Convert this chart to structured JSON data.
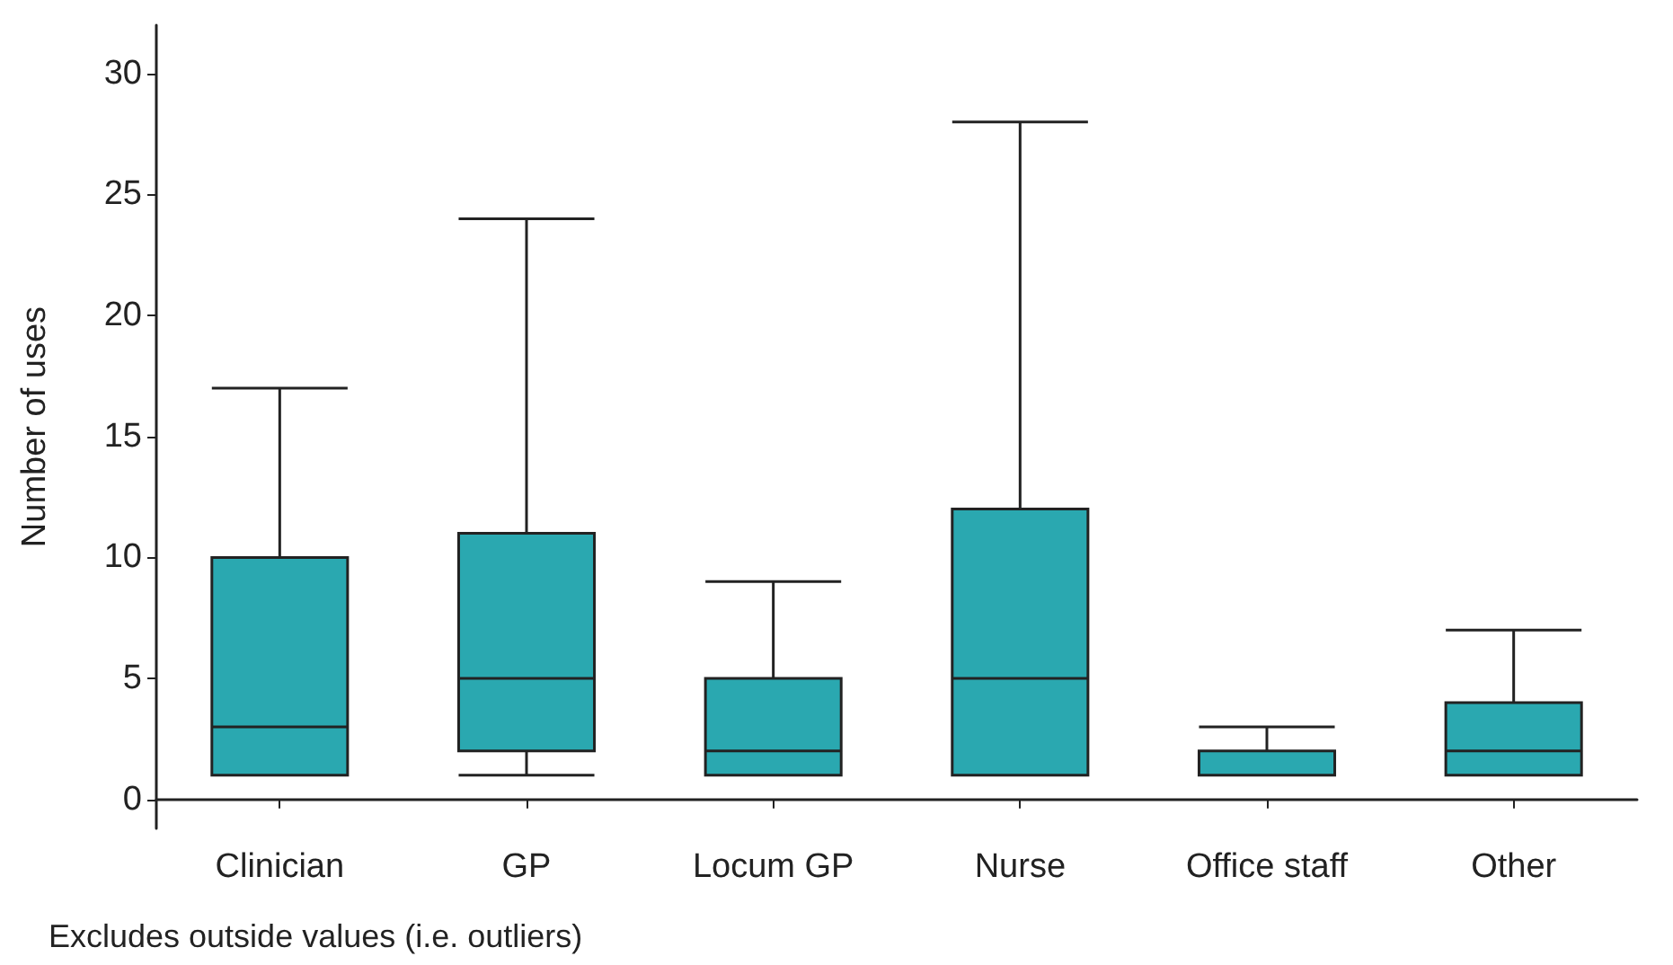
{
  "chart_data": {
    "type": "box",
    "ylabel": "Number of uses",
    "categories": [
      "Clinician",
      "GP",
      "Locum GP",
      "Nurse",
      "Office staff",
      "Other"
    ],
    "boxes": [
      {
        "low": 1,
        "q1": 1,
        "median": 3,
        "q3": 10,
        "high": 17
      },
      {
        "low": 1,
        "q1": 2,
        "median": 5,
        "q3": 11,
        "high": 24
      },
      {
        "low": 1,
        "q1": 1,
        "median": 2,
        "q3": 5,
        "high": 9
      },
      {
        "low": 1,
        "q1": 1,
        "median": 5,
        "q3": 12,
        "high": 28
      },
      {
        "low": 1,
        "q1": 1,
        "median": 1,
        "q3": 2,
        "high": 3
      },
      {
        "low": 1,
        "q1": 1,
        "median": 2,
        "q3": 4,
        "high": 7
      }
    ],
    "color": "#2aa8b0",
    "ylim": [
      -1.2,
      32
    ],
    "yticks": [
      0,
      5,
      10,
      15,
      20,
      25,
      30
    ],
    "grid": false,
    "annotations": [
      "Excludes outside values (i.e. outliers)"
    ]
  }
}
